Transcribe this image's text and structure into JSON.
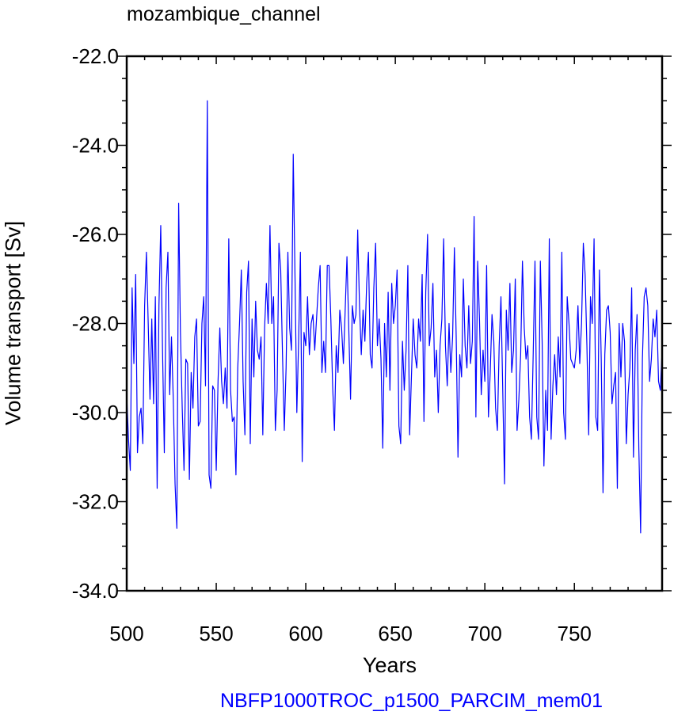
{
  "chart_data": {
    "type": "line",
    "title": "mozambique_channel",
    "subtitle": "NBFP1000TROC_p1500_PARCIM_mem01",
    "xlabel": "Years",
    "ylabel": "Volume transport [Sv]",
    "xlim": [
      500,
      799
    ],
    "ylim": [
      -34,
      -22
    ],
    "x_ticks": [
      500,
      550,
      600,
      650,
      700,
      750
    ],
    "x_tick_labels": [
      "500",
      "550",
      "600",
      "650",
      "700",
      "750"
    ],
    "y_ticks": [
      -22,
      -24,
      -26,
      -28,
      -30,
      -32,
      -34
    ],
    "y_tick_labels": [
      "-22.0",
      "-24.0",
      "-26.0",
      "-28.0",
      "-30.0",
      "-32.0",
      "-34.0"
    ],
    "grid": false,
    "line_color": "#0000ff",
    "series": [
      {
        "x_start": 500,
        "x_step": 1,
        "values": [
          -29.6,
          -30.6,
          -31.3,
          -27.2,
          -28.9,
          -26.9,
          -30.9,
          -30.1,
          -29.9,
          -30.7,
          -27.6,
          -26.4,
          -28.0,
          -29.7,
          -27.9,
          -29.8,
          -27.4,
          -31.7,
          -27.6,
          -25.8,
          -28.6,
          -30.9,
          -27.2,
          -26.4,
          -29.6,
          -28.3,
          -29.7,
          -31.6,
          -32.6,
          -25.3,
          -28.2,
          -29.9,
          -31.3,
          -28.8,
          -28.9,
          -31.5,
          -29.1,
          -29.9,
          -28.3,
          -27.9,
          -30.3,
          -30.2,
          -28.0,
          -27.4,
          -29.4,
          -23.0,
          -31.4,
          -31.7,
          -29.4,
          -29.5,
          -31.3,
          -29.3,
          -28.1,
          -29.3,
          -29.8,
          -29.0,
          -29.9,
          -26.1,
          -29.5,
          -30.2,
          -30.1,
          -31.4,
          -29.0,
          -28.0,
          -26.8,
          -29.3,
          -30.5,
          -27.3,
          -26.6,
          -30.7,
          -27.9,
          -29.2,
          -27.5,
          -28.6,
          -28.8,
          -28.3,
          -30.5,
          -28.1,
          -27.1,
          -28.0,
          -25.8,
          -28.0,
          -27.4,
          -30.4,
          -29.5,
          -26.2,
          -26.8,
          -28.7,
          -30.4,
          -29.0,
          -26.4,
          -28.1,
          -28.6,
          -24.2,
          -27.0,
          -30.0,
          -28.4,
          -26.4,
          -31.1,
          -28.2,
          -28.5,
          -27.4,
          -28.7,
          -28.0,
          -27.8,
          -28.6,
          -27.9,
          -27.2,
          -26.7,
          -29.1,
          -28.4,
          -29.1,
          -26.7,
          -26.7,
          -27.9,
          -29.4,
          -30.4,
          -28.5,
          -29.1,
          -27.7,
          -28.1,
          -28.9,
          -27.7,
          -26.5,
          -28.1,
          -29.7,
          -27.6,
          -28.0,
          -27.8,
          -25.9,
          -27.6,
          -28.7,
          -27.7,
          -28.4,
          -27.1,
          -26.4,
          -28.7,
          -29.0,
          -27.2,
          -26.2,
          -28.5,
          -27.9,
          -28.8,
          -30.8,
          -28.0,
          -29.2,
          -27.3,
          -29.5,
          -27.1,
          -28.0,
          -27.6,
          -26.8,
          -30.3,
          -30.7,
          -28.4,
          -29.5,
          -28.6,
          -26.7,
          -30.5,
          -29.2,
          -27.9,
          -28.7,
          -29.0,
          -27.9,
          -28.4,
          -26.9,
          -30.2,
          -27.3,
          -26.0,
          -28.5,
          -28.1,
          -27.1,
          -29.2,
          -28.6,
          -30.0,
          -28.5,
          -27.9,
          -26.1,
          -28.5,
          -29.4,
          -28.0,
          -29.1,
          -28.3,
          -26.3,
          -28.3,
          -31.0,
          -28.7,
          -29.2,
          -27.0,
          -28.5,
          -29.0,
          -27.6,
          -28.9,
          -28.4,
          -25.6,
          -30.1,
          -26.6,
          -27.9,
          -29.6,
          -28.6,
          -29.3,
          -26.7,
          -30.1,
          -29.1,
          -27.8,
          -28.4,
          -29.9,
          -30.4,
          -28.5,
          -27.4,
          -29.5,
          -31.6,
          -27.7,
          -28.6,
          -27.1,
          -29.1,
          -28.6,
          -27.0,
          -30.4,
          -29.7,
          -28.7,
          -26.6,
          -28.1,
          -28.8,
          -28.5,
          -30.1,
          -30.6,
          -28.7,
          -26.6,
          -30.1,
          -30.6,
          -26.6,
          -28.4,
          -31.2,
          -29.5,
          -30.4,
          -26.1,
          -30.6,
          -29.4,
          -28.7,
          -29.6,
          -28.3,
          -29.2,
          -26.4,
          -30.0,
          -30.6,
          -27.4,
          -28.0,
          -28.8,
          -28.9,
          -29.0,
          -28.6,
          -27.6,
          -28.9,
          -28.0,
          -26.2,
          -26.9,
          -28.5,
          -30.5,
          -27.4,
          -28.0,
          -26.1,
          -30.1,
          -30.4,
          -26.8,
          -28.8,
          -31.8,
          -28.7,
          -27.7,
          -27.6,
          -28.2,
          -29.8,
          -29.4,
          -29.1,
          -31.7,
          -28.0,
          -29.2,
          -28.0,
          -28.4,
          -30.7,
          -29.6,
          -29.0,
          -27.2,
          -31.0,
          -28.6,
          -27.8,
          -30.8,
          -32.7,
          -28.8,
          -27.4,
          -27.2,
          -27.6,
          -29.3,
          -28.8,
          -27.9,
          -28.3,
          -27.7,
          -29.3,
          -29.5,
          -28.6
        ]
      }
    ]
  }
}
